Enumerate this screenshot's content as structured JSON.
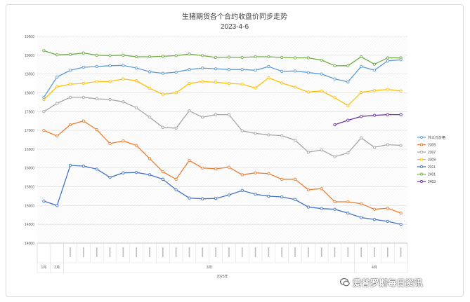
{
  "chart_data": {
    "type": "line",
    "title": "生猪期货各个合约收盘价同步走势",
    "subtitle": "2023-4-6",
    "ylim": [
      14000,
      19500
    ],
    "yticks": [
      14000,
      14500,
      15000,
      15500,
      16000,
      16500,
      17000,
      17500,
      18000,
      18500,
      19000,
      19500
    ],
    "grid": true,
    "legend_position": "right",
    "x_month_labels": [
      {
        "label": "1月",
        "start": 0,
        "end": 0
      },
      {
        "label": "2月",
        "start": 1,
        "end": 1
      },
      {
        "label": "3月",
        "start": 2,
        "end": 23
      },
      {
        "label": "4月",
        "start": 24,
        "end": 26
      }
    ],
    "x_year_label": "2023年",
    "series": [
      {
        "name": "外三元价格",
        "color": "#5b9bd5",
        "values": []
      },
      {
        "name": "2305",
        "color": "#ed7d31",
        "values": [
          17000,
          16850,
          17150,
          17250,
          17020,
          16650,
          16720,
          16600,
          16250,
          15900,
          15700,
          16200,
          16000,
          15980,
          16020,
          15820,
          15870,
          15850,
          15700,
          15700,
          15420,
          15450,
          15100,
          15100,
          15050,
          14900,
          14930,
          14800
        ]
      },
      {
        "name": "2307",
        "color": "#a5a5a5",
        "values": [
          17500,
          17720,
          17880,
          17880,
          17840,
          17820,
          17760,
          17600,
          17350,
          17080,
          17060,
          17520,
          17350,
          17420,
          17420,
          16990,
          16920,
          16880,
          16860,
          16740,
          16420,
          16480,
          16300,
          16400,
          16800,
          16550,
          16620,
          16600
        ]
      },
      {
        "name": "2309",
        "color": "#ffc000",
        "values": [
          17820,
          18160,
          18230,
          18250,
          18300,
          18300,
          18370,
          18320,
          18120,
          17960,
          18000,
          18250,
          18300,
          18280,
          18250,
          18230,
          18130,
          18400,
          18260,
          18150,
          18020,
          18050,
          17870,
          17660,
          18010,
          18060,
          18090,
          18050
        ]
      },
      {
        "name": "2311",
        "color": "#4472c4",
        "values": [
          15120,
          15000,
          16070,
          16050,
          15970,
          15750,
          15870,
          15880,
          15820,
          15700,
          15420,
          15200,
          15180,
          15190,
          15280,
          15400,
          15300,
          15250,
          15230,
          15160,
          14960,
          14920,
          14900,
          14800,
          14680,
          14630,
          14580,
          14500
        ]
      },
      {
        "name": "2401",
        "color": "#70ad47",
        "values": [
          19120,
          19010,
          19020,
          19060,
          19000,
          18990,
          19000,
          18960,
          18960,
          18970,
          18990,
          19030,
          18990,
          18940,
          18950,
          18940,
          18960,
          18960,
          18940,
          18930,
          18930,
          18870,
          18720,
          18720,
          18960,
          18760,
          18930,
          18930
        ]
      },
      {
        "name": "2403",
        "color": "#7030a0",
        "values": [
          null,
          null,
          null,
          null,
          null,
          null,
          null,
          null,
          null,
          null,
          null,
          null,
          null,
          null,
          null,
          null,
          null,
          null,
          null,
          null,
          null,
          null,
          17150,
          17270,
          17370,
          17400,
          17420,
          17420
        ]
      },
      {
        "name": "",
        "color": "#5b9bd5",
        "values": [
          17880,
          18420,
          18600,
          18680,
          18700,
          18720,
          18730,
          18660,
          18560,
          18520,
          18550,
          18620,
          18660,
          18640,
          18620,
          18620,
          18600,
          18700,
          18570,
          18580,
          18540,
          18500,
          18370,
          18290,
          18700,
          18600,
          18850,
          18880
        ]
      }
    ]
  },
  "watermark": {
    "text": "爱普罗斯每日资讯"
  }
}
